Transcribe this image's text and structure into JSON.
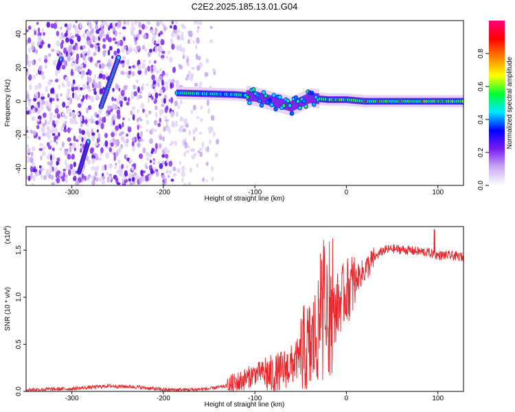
{
  "chart_data": [
    {
      "type": "heatmap",
      "title": "C2E2.2025.185.13.01.G04",
      "xlabel": "Height of straight line (km)",
      "ylabel": "Frequency (Hz)",
      "xlim": [
        -350,
        128
      ],
      "ylim": [
        -50,
        48
      ],
      "xticks": [
        -300,
        -200,
        -100,
        0,
        100
      ],
      "yticks": [
        -40,
        -20,
        0,
        20,
        40
      ],
      "colorbar": {
        "label": "Normalized spectral amplitude",
        "range": [
          0,
          1
        ],
        "ticks": [
          "0.0",
          "0.2",
          "0.4",
          "0.6",
          "0.8"
        ],
        "tick_values": [
          0.0,
          0.2,
          0.4,
          0.6,
          0.8
        ],
        "colors": [
          "#ffffff",
          "#c8a8f0",
          "#7a1cf0",
          "#0000ff",
          "#00e8ff",
          "#00ff30",
          "#ffff00",
          "#ff8000",
          "#ff0000",
          "#ff0080"
        ]
      },
      "features": [
        {
          "name": "noise-region",
          "x_range": [
            -350,
            -140
          ],
          "y_range": [
            -50,
            48
          ]
        },
        {
          "name": "steep-streak-upper",
          "x": [
            -268,
            -249
          ],
          "y": [
            -3,
            26
          ]
        },
        {
          "name": "steep-streak-lower",
          "x": [
            -292,
            -282
          ],
          "y": [
            -42,
            -24
          ]
        },
        {
          "name": "streak-short",
          "x": [
            -315,
            -312
          ],
          "y": [
            20,
            25
          ]
        },
        {
          "name": "main-signal-band",
          "x": [
            -185,
            -120,
            -100,
            -80,
            -60,
            -40,
            -20,
            0,
            20,
            60,
            100,
            128
          ],
          "y": [
            5,
            4,
            3,
            0,
            -3,
            2,
            1,
            1,
            0,
            0,
            0,
            0
          ]
        }
      ]
    },
    {
      "type": "line",
      "ylabel": "SNR (10 * v/v)",
      "xlabel": "Height of straight line (km)",
      "xlim": [
        -350,
        128
      ],
      "ylim": [
        0,
        1.75
      ],
      "scale_label_base": "(x10",
      "scale_label_exp": "4",
      "scale_label_end": ")",
      "xticks": [
        -300,
        -200,
        -100,
        0,
        100
      ],
      "yticks": [
        "0.0",
        "0.5",
        "1.0",
        "1.5"
      ],
      "ytick_values": [
        0,
        0.5,
        1.0,
        1.5
      ],
      "series": [
        {
          "color": "#e8252a",
          "x": [
            -350,
            -300,
            -260,
            -230,
            -200,
            -170,
            -150,
            -130,
            -115,
            -100,
            -90,
            -80,
            -70,
            -60,
            -50,
            -40,
            -30,
            -20,
            -15,
            -10,
            0,
            10,
            20,
            30,
            40,
            50,
            60,
            70,
            80,
            90,
            95,
            100,
            110,
            120,
            128
          ],
          "y": [
            0.02,
            0.03,
            0.06,
            0.05,
            0.02,
            0.02,
            0.03,
            0.06,
            0.12,
            0.2,
            0.22,
            0.18,
            0.25,
            0.3,
            0.4,
            0.5,
            0.7,
            0.75,
            0.8,
            0.95,
            1.1,
            1.2,
            1.3,
            1.42,
            1.5,
            1.52,
            1.51,
            1.5,
            1.49,
            1.48,
            1.46,
            1.45,
            1.45,
            1.44,
            1.43
          ]
        }
      ]
    }
  ]
}
